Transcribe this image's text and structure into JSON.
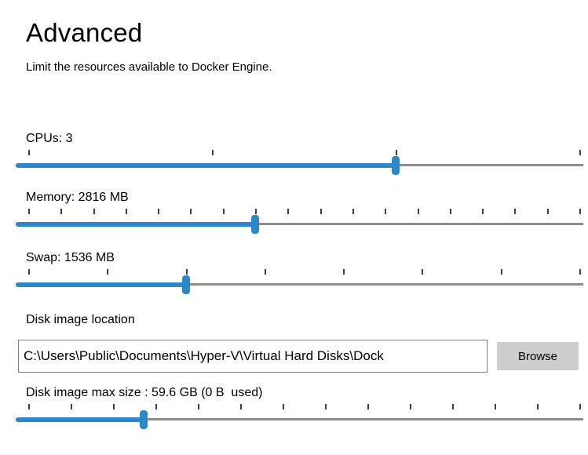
{
  "page": {
    "title": "Advanced",
    "description": "Limit the resources available to Docker Engine."
  },
  "colors": {
    "accent_blue": "#2E87C8",
    "track_gray": "#8C8C8C",
    "browse_bg": "#CDCDCD"
  },
  "sliders": [
    {
      "id": "cpus",
      "label": "CPUs: 3",
      "value": "3",
      "ticks": 4,
      "percent": 66.8
    },
    {
      "id": "memory",
      "label": "Memory: 2816 MB",
      "value": "2816 MB",
      "ticks": 18,
      "percent": 42.1
    },
    {
      "id": "swap",
      "label": "Swap: 1536 MB",
      "value": "1536 MB",
      "ticks": 8,
      "percent": 29.9
    },
    {
      "id": "disk-max-size",
      "label": "Disk image max size : 59.6 GB (0 B  used)",
      "value": "59.6 GB",
      "ticks": 14,
      "percent": 22.5
    }
  ],
  "disk_location": {
    "label": "Disk image location",
    "value": "C:\\Users\\Public\\Documents\\Hyper-V\\Virtual Hard Disks\\Dock",
    "browse_label": "Browse"
  }
}
